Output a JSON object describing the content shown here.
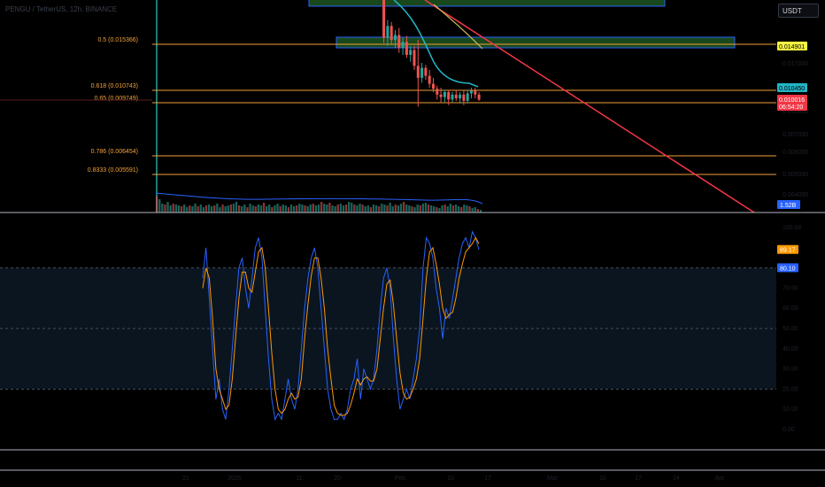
{
  "header": {
    "symbol": "PENGU / TetherUS, 12h, BINANCE",
    "currency": "USDT"
  },
  "colors": {
    "fib": "#f2a13a",
    "up": "#26a69a",
    "down": "#ef5350",
    "ma": "#22b5c6",
    "ma_slow": "#c8b95a",
    "trendline": "#f23645",
    "zone_border": "#2962ff",
    "zone_fill": "#1e5a22",
    "stoch_k": "#2962ff",
    "stoch_d": "#ff9800",
    "band_fill": "#0a1520",
    "vline": "#26a69a"
  },
  "chart_data": [
    {
      "type": "candlestick",
      "panel": "price",
      "fib_levels": [
        {
          "label": "0.5 (0.015366)",
          "price": 0.015366
        },
        {
          "label": "0.618 (0.010743)",
          "price": 0.010743
        },
        {
          "label": "0.65 (0.009749)",
          "price": 0.009749
        },
        {
          "label": "0.786 (0.006454)",
          "price": 0.006454
        },
        {
          "label": "0.8333 (0.005591)",
          "price": 0.005591
        }
      ],
      "price_badges": [
        {
          "label": "0.014901",
          "color": "#f5f542",
          "text_color": "#000000"
        },
        {
          "label": "0.010450",
          "color": "#22b5c6",
          "text_color": "#000000"
        },
        {
          "label": "0.010016",
          "color": "#f23645",
          "text_color": "#ffffff"
        },
        {
          "label": "06:54:20",
          "color": "#f23645",
          "text_color": "#ffffff"
        }
      ],
      "axis_ticks": [
        "0.017000",
        "0.010000",
        "0.007000",
        "0.006000",
        "0.005000",
        "0.004000"
      ],
      "candles": [
        {
          "o": 0.026,
          "h": 0.027,
          "l": 0.0238,
          "c": 0.0245
        },
        {
          "o": 0.0245,
          "h": 0.0252,
          "l": 0.02,
          "c": 0.021
        },
        {
          "o": 0.021,
          "h": 0.022,
          "l": 0.0155,
          "c": 0.016
        },
        {
          "o": 0.016,
          "h": 0.0178,
          "l": 0.0152,
          "c": 0.0172
        },
        {
          "o": 0.0172,
          "h": 0.0176,
          "l": 0.0154,
          "c": 0.0158
        },
        {
          "o": 0.0158,
          "h": 0.0168,
          "l": 0.015,
          "c": 0.0163
        },
        {
          "o": 0.0163,
          "h": 0.017,
          "l": 0.0145,
          "c": 0.015
        },
        {
          "o": 0.015,
          "h": 0.016,
          "l": 0.0143,
          "c": 0.0156
        },
        {
          "o": 0.0156,
          "h": 0.0162,
          "l": 0.014,
          "c": 0.0143
        },
        {
          "o": 0.0143,
          "h": 0.0152,
          "l": 0.0136,
          "c": 0.0148
        },
        {
          "o": 0.0148,
          "h": 0.0152,
          "l": 0.0128,
          "c": 0.0132
        },
        {
          "o": 0.0132,
          "h": 0.0158,
          "l": 0.0095,
          "c": 0.012
        },
        {
          "o": 0.012,
          "h": 0.0135,
          "l": 0.0115,
          "c": 0.013
        },
        {
          "o": 0.013,
          "h": 0.0133,
          "l": 0.0118,
          "c": 0.0122
        },
        {
          "o": 0.0122,
          "h": 0.0128,
          "l": 0.011,
          "c": 0.0114
        },
        {
          "o": 0.0114,
          "h": 0.012,
          "l": 0.0106,
          "c": 0.0109
        },
        {
          "o": 0.0109,
          "h": 0.0112,
          "l": 0.01,
          "c": 0.0104
        },
        {
          "o": 0.0104,
          "h": 0.011,
          "l": 0.0098,
          "c": 0.0102
        },
        {
          "o": 0.0102,
          "h": 0.0108,
          "l": 0.0098,
          "c": 0.0106
        },
        {
          "o": 0.0106,
          "h": 0.0108,
          "l": 0.0096,
          "c": 0.01
        },
        {
          "o": 0.01,
          "h": 0.0106,
          "l": 0.0098,
          "c": 0.0104
        },
        {
          "o": 0.0104,
          "h": 0.0107,
          "l": 0.0099,
          "c": 0.0101
        },
        {
          "o": 0.0101,
          "h": 0.0106,
          "l": 0.0097,
          "c": 0.0104
        },
        {
          "o": 0.0104,
          "h": 0.0107,
          "l": 0.0096,
          "c": 0.0099
        },
        {
          "o": 0.0099,
          "h": 0.0108,
          "l": 0.0097,
          "c": 0.0105
        },
        {
          "o": 0.0105,
          "h": 0.011,
          "l": 0.0101,
          "c": 0.0107
        },
        {
          "o": 0.0107,
          "h": 0.011,
          "l": 0.0101,
          "c": 0.0104
        },
        {
          "o": 0.0104,
          "h": 0.0106,
          "l": 0.0099,
          "c": 0.01
        }
      ],
      "volume_badge": "1.52B",
      "volume": [
        18,
        15,
        10,
        9,
        12,
        8,
        10,
        9,
        8,
        7,
        9,
        6,
        8,
        7,
        10,
        7,
        9,
        6,
        8,
        9,
        7,
        8,
        10,
        6,
        9,
        7,
        8,
        9,
        10,
        12,
        8,
        7,
        9,
        6,
        10,
        8,
        7,
        9,
        8,
        11,
        7,
        9,
        6,
        8,
        10,
        7,
        9,
        8,
        6,
        9,
        7,
        8,
        10,
        9,
        8,
        7,
        9,
        10,
        8,
        9,
        12,
        10,
        9,
        11,
        8,
        7,
        9,
        10,
        8,
        9,
        12,
        11,
        9,
        8,
        10,
        9,
        7,
        8,
        6,
        9,
        8,
        7,
        10,
        9,
        8,
        11,
        7,
        9,
        8,
        10,
        12,
        9,
        8,
        7,
        6,
        9,
        8,
        10,
        11,
        9,
        8,
        7,
        6,
        5,
        8,
        9,
        7,
        10,
        8,
        9,
        7,
        6,
        9,
        8,
        7,
        5,
        6,
        4,
        3
      ]
    },
    {
      "type": "line",
      "panel": "stochastic",
      "axis_ticks": [
        "100.00",
        "90.00",
        "80.00",
        "70.00",
        "60.00",
        "50.00",
        "40.00",
        "30.00",
        "20.00",
        "10.00",
        "0.00"
      ],
      "bands": [
        80,
        50,
        20
      ],
      "ylim": [
        0,
        100
      ],
      "badges": [
        {
          "label": "89.17",
          "color": "#ff9800"
        },
        {
          "label": "80.10",
          "color": "#2962ff"
        }
      ],
      "series": [
        {
          "values": [
            75,
            90,
            65,
            40,
            15,
            25,
            10,
            5,
            20,
            40,
            60,
            80,
            85,
            70,
            60,
            75,
            90,
            95,
            85,
            60,
            35,
            15,
            5,
            8,
            5,
            15,
            25,
            15,
            10,
            20,
            40,
            60,
            75,
            85,
            90,
            80,
            60,
            40,
            20,
            10,
            5,
            5,
            8,
            5,
            10,
            20,
            25,
            35,
            15,
            30,
            25,
            20,
            25,
            40,
            60,
            75,
            80,
            70,
            45,
            25,
            10,
            15,
            20,
            15,
            25,
            35,
            50,
            80,
            95,
            92,
            85,
            70,
            60,
            45,
            60,
            55,
            65,
            75,
            85,
            92,
            95,
            90,
            98,
            95,
            89
          ]
        },
        {
          "values": [
            70,
            80,
            75,
            55,
            30,
            20,
            15,
            10,
            12,
            25,
            45,
            65,
            78,
            78,
            70,
            68,
            78,
            88,
            90,
            80,
            60,
            38,
            20,
            10,
            8,
            10,
            15,
            18,
            15,
            16,
            25,
            45,
            62,
            76,
            85,
            85,
            75,
            60,
            40,
            25,
            12,
            8,
            7,
            7,
            8,
            12,
            18,
            25,
            22,
            25,
            26,
            24,
            24,
            30,
            45,
            60,
            72,
            74,
            62,
            45,
            28,
            18,
            15,
            16,
            20,
            25,
            35,
            55,
            75,
            88,
            90,
            82,
            72,
            60,
            55,
            57,
            58,
            65,
            75,
            82,
            88,
            90,
            92,
            95,
            92
          ]
        }
      ]
    }
  ],
  "time_axis": {
    "labels": [
      "21",
      "2025",
      "11",
      "20",
      "Feb",
      "10",
      "17",
      "Mar",
      "10",
      "17",
      "24",
      "Apr"
    ]
  }
}
